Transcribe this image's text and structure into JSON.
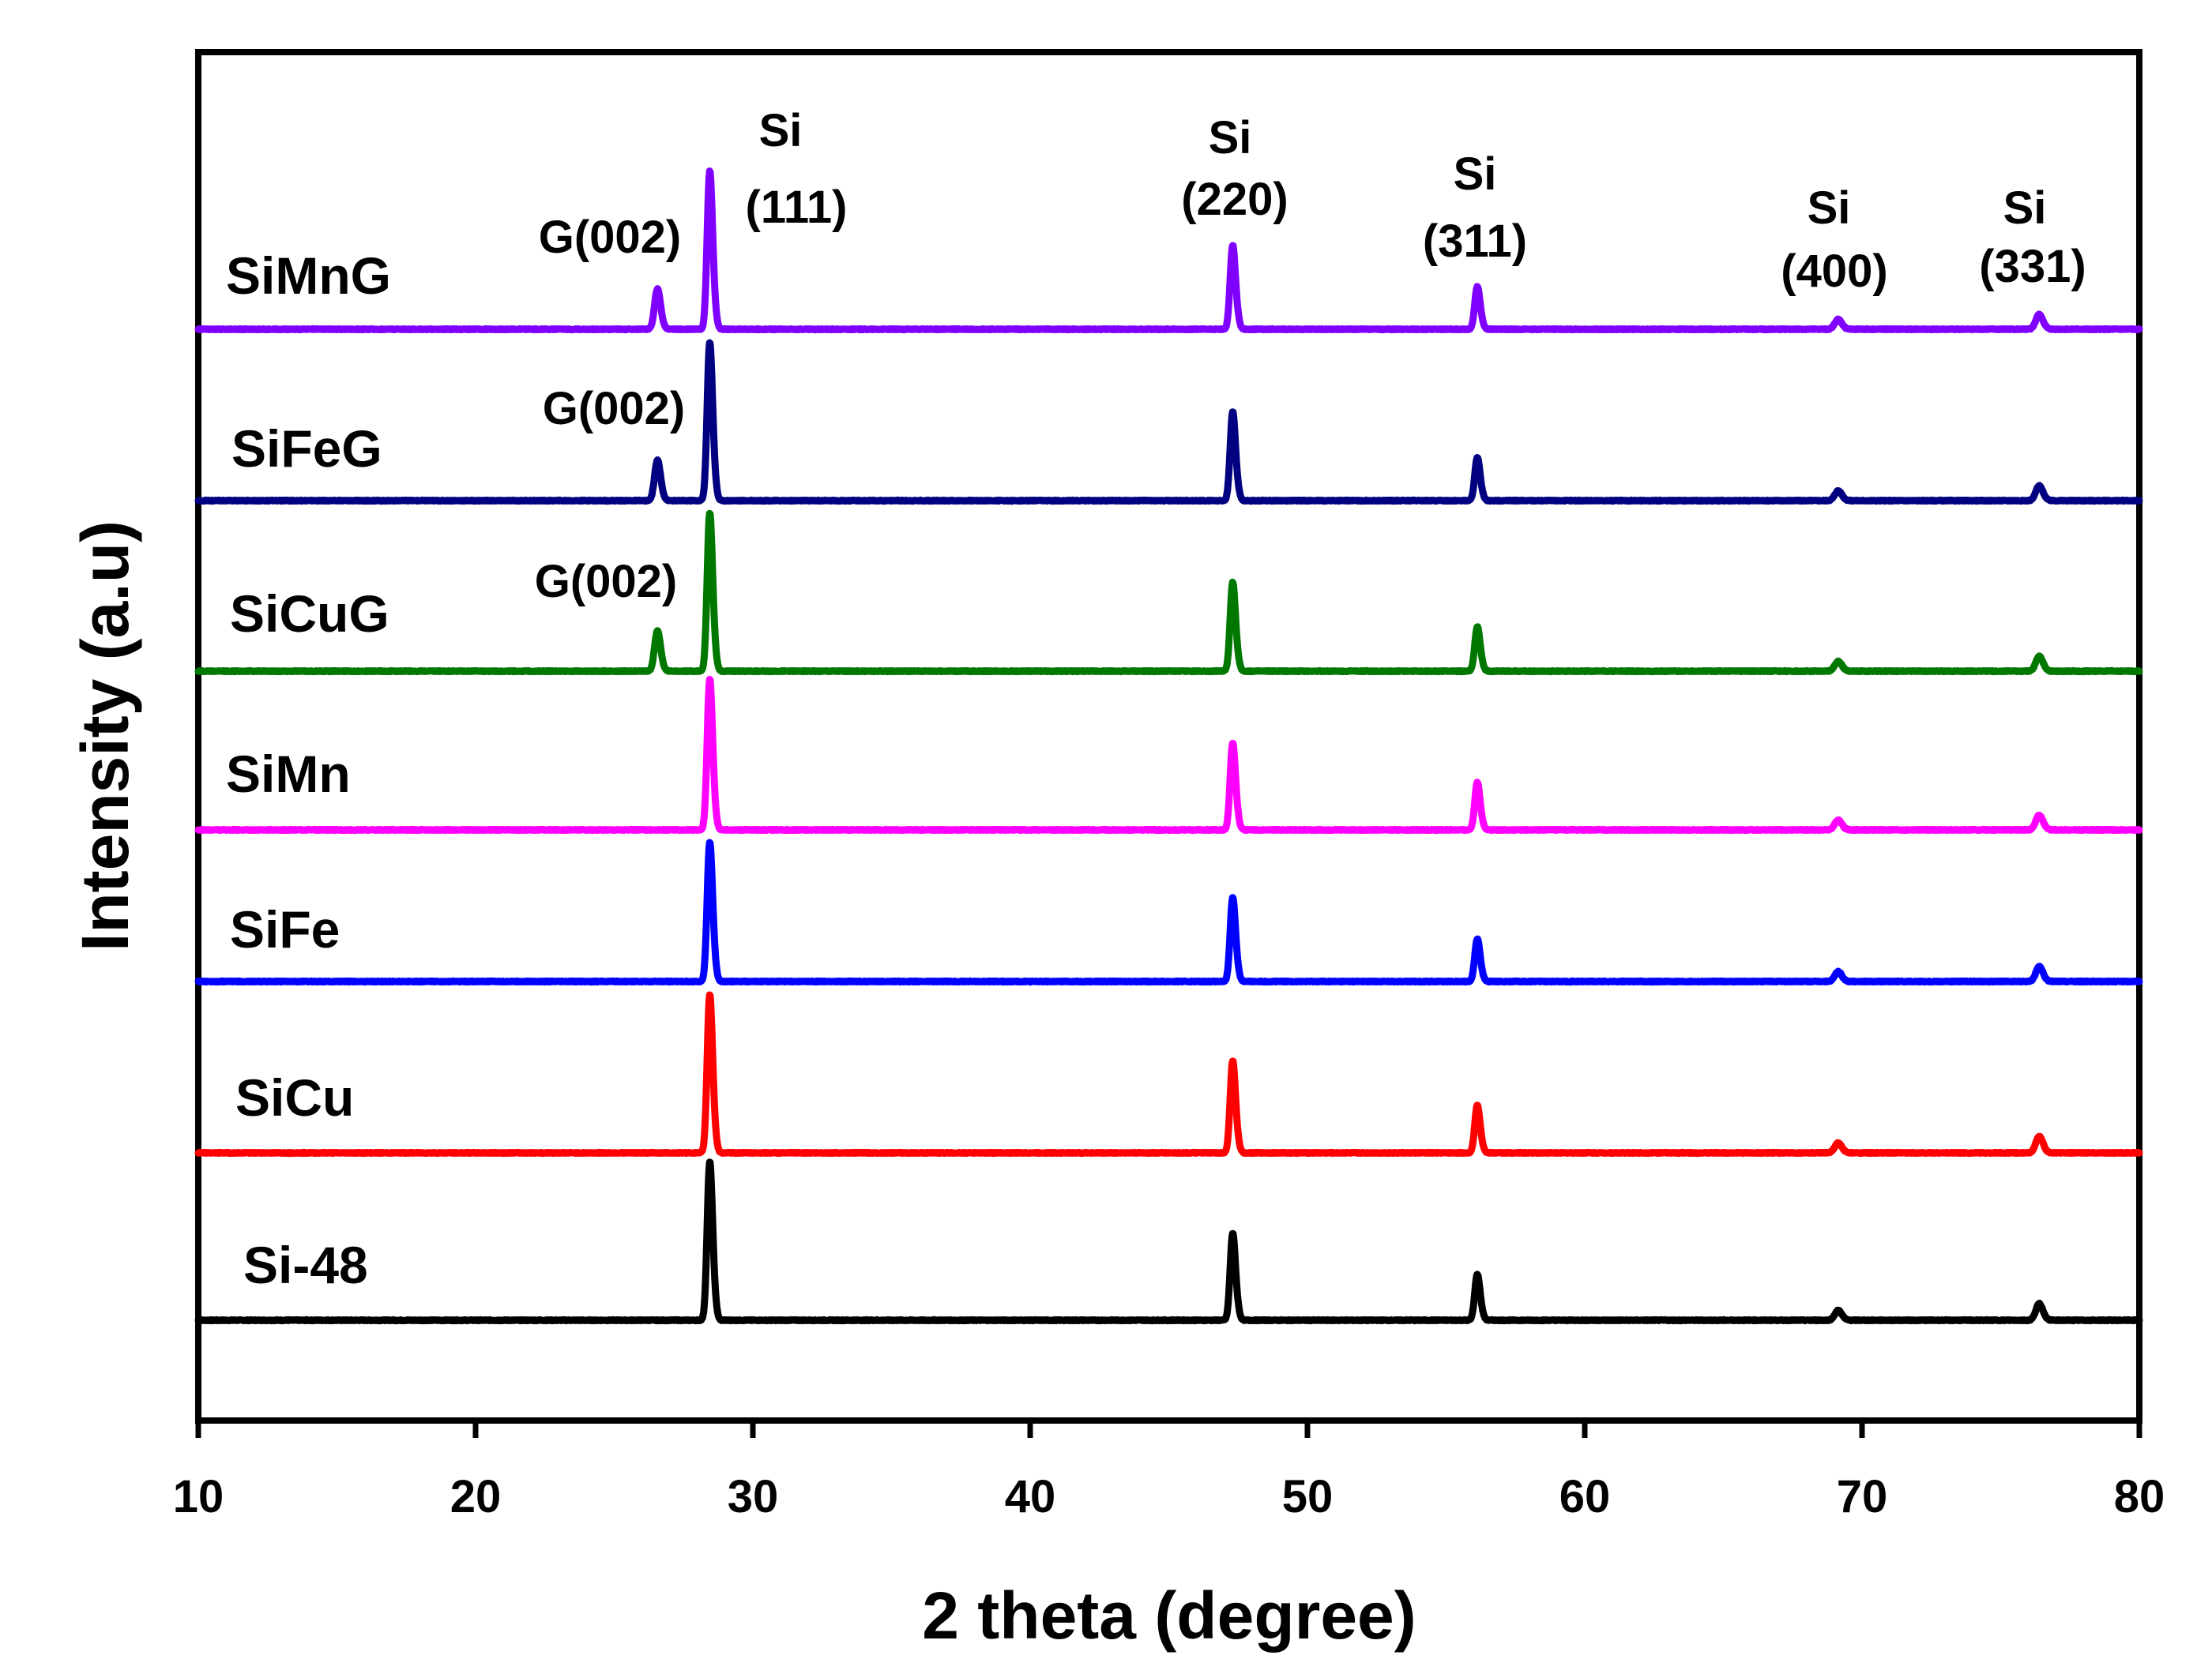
{
  "chart_data": {
    "type": "line",
    "title": "",
    "xlabel": "2 theta (degree)",
    "ylabel": "Intensity (a.u)",
    "xlim": [
      10,
      80
    ],
    "xticks": [
      10,
      20,
      30,
      40,
      50,
      60,
      70,
      80
    ],
    "xtick_labels": [
      "10",
      "20",
      "30",
      "40",
      "50",
      "60",
      "70",
      "80"
    ],
    "y_ticks_shown": false,
    "layout": "stacked (vertically offset) patterns",
    "series": [
      {
        "name": "Si-48",
        "label": "Si-48",
        "color": "#000000",
        "peaks": [
          {
            "x": 28.44,
            "h": 1.0,
            "w": 0.09
          },
          {
            "x": 47.3,
            "h": 0.55,
            "w": 0.09
          },
          {
            "x": 56.12,
            "h": 0.29,
            "w": 0.09
          },
          {
            "x": 69.13,
            "h": 0.06,
            "w": 0.12
          },
          {
            "x": 76.38,
            "h": 0.1,
            "w": 0.12
          }
        ]
      },
      {
        "name": "SiCu",
        "label": "SiCu",
        "color": "#ff0000",
        "peaks": [
          {
            "x": 28.44,
            "h": 1.0,
            "w": 0.09
          },
          {
            "x": 47.3,
            "h": 0.58,
            "w": 0.09
          },
          {
            "x": 56.12,
            "h": 0.3,
            "w": 0.09
          },
          {
            "x": 69.13,
            "h": 0.06,
            "w": 0.12
          },
          {
            "x": 76.38,
            "h": 0.1,
            "w": 0.12
          }
        ]
      },
      {
        "name": "SiFe",
        "label": "SiFe",
        "color": "#0000ff",
        "peaks": [
          {
            "x": 28.44,
            "h": 0.88,
            "w": 0.09
          },
          {
            "x": 47.3,
            "h": 0.53,
            "w": 0.09
          },
          {
            "x": 56.12,
            "h": 0.27,
            "w": 0.09
          },
          {
            "x": 69.13,
            "h": 0.06,
            "w": 0.12
          },
          {
            "x": 76.38,
            "h": 0.09,
            "w": 0.12
          }
        ]
      },
      {
        "name": "SiMn",
        "label": "SiMn",
        "color": "#ff00ff",
        "peaks": [
          {
            "x": 28.44,
            "h": 0.95,
            "w": 0.09
          },
          {
            "x": 47.3,
            "h": 0.55,
            "w": 0.09
          },
          {
            "x": 56.12,
            "h": 0.3,
            "w": 0.09
          },
          {
            "x": 69.13,
            "h": 0.06,
            "w": 0.12
          },
          {
            "x": 76.38,
            "h": 0.09,
            "w": 0.12
          }
        ]
      },
      {
        "name": "SiCuG",
        "label": "SiCuG",
        "color": "#007800",
        "peaks": [
          {
            "x": 26.55,
            "h": 0.25,
            "w": 0.1
          },
          {
            "x": 28.44,
            "h": 1.0,
            "w": 0.09
          },
          {
            "x": 47.3,
            "h": 0.56,
            "w": 0.09
          },
          {
            "x": 56.12,
            "h": 0.28,
            "w": 0.09
          },
          {
            "x": 69.13,
            "h": 0.06,
            "w": 0.12
          },
          {
            "x": 76.38,
            "h": 0.09,
            "w": 0.12
          }
        ]
      },
      {
        "name": "SiFeG",
        "label": "SiFeG",
        "color": "#000080",
        "peaks": [
          {
            "x": 26.55,
            "h": 0.25,
            "w": 0.1
          },
          {
            "x": 28.44,
            "h": 1.0,
            "w": 0.09
          },
          {
            "x": 47.3,
            "h": 0.56,
            "w": 0.09
          },
          {
            "x": 56.12,
            "h": 0.27,
            "w": 0.09
          },
          {
            "x": 69.13,
            "h": 0.06,
            "w": 0.12
          },
          {
            "x": 76.38,
            "h": 0.09,
            "w": 0.12
          }
        ]
      },
      {
        "name": "SiMnG",
        "label": "SiMnG",
        "color": "#8000ff",
        "peaks": [
          {
            "x": 26.55,
            "h": 0.25,
            "w": 0.1
          },
          {
            "x": 28.44,
            "h": 1.0,
            "w": 0.09
          },
          {
            "x": 47.3,
            "h": 0.53,
            "w": 0.09
          },
          {
            "x": 56.12,
            "h": 0.27,
            "w": 0.09
          },
          {
            "x": 69.13,
            "h": 0.06,
            "w": 0.12
          },
          {
            "x": 76.38,
            "h": 0.09,
            "w": 0.12
          }
        ]
      }
    ],
    "annotations": [
      {
        "id": "g002-simng",
        "lines": [
          "G(002)"
        ],
        "x": 26.55,
        "series": "SiMnG"
      },
      {
        "id": "si111",
        "lines": [
          "Si",
          "(111)"
        ],
        "x": 30.2,
        "series": "SiMnG"
      },
      {
        "id": "si220",
        "lines": [
          "Si",
          "(220)"
        ],
        "x": 47.5,
        "series": "SiMnG"
      },
      {
        "id": "si311",
        "lines": [
          "Si",
          "(311)"
        ],
        "x": 56.1,
        "series": "SiMnG"
      },
      {
        "id": "si400",
        "lines": [
          "Si",
          "(400)"
        ],
        "x": 69.1,
        "series": "SiMnG"
      },
      {
        "id": "si331",
        "lines": [
          "Si",
          "(331)"
        ],
        "x": 76.3,
        "series": "SiMnG"
      },
      {
        "id": "g002-sifeg",
        "lines": [
          "G(002)"
        ],
        "x": 26.55,
        "series": "SiFeG"
      },
      {
        "id": "g002-sicug",
        "lines": [
          "G(002)"
        ],
        "x": 26.55,
        "series": "SiCuG"
      }
    ]
  }
}
